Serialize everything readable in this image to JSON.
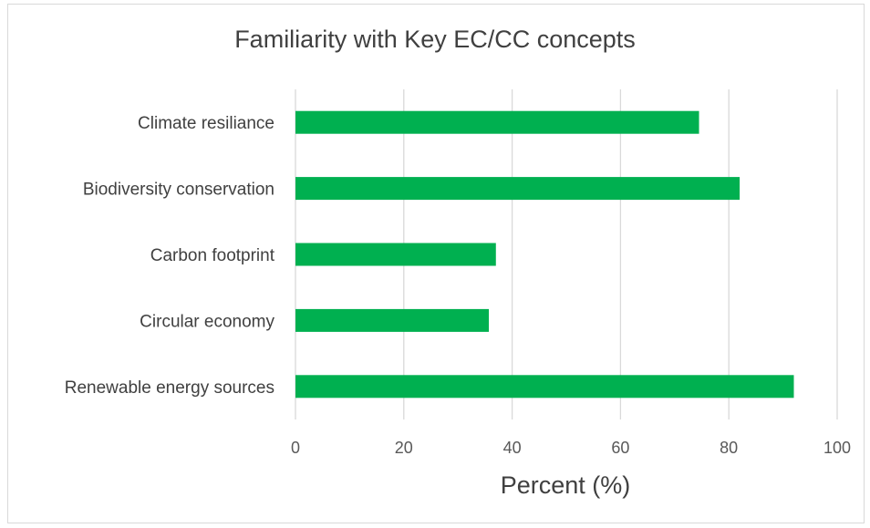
{
  "chart_data": {
    "type": "bar",
    "orientation": "horizontal",
    "title": "Familiarity with Key EC/CC concepts",
    "xlabel": "Percent (%)",
    "ylabel": "",
    "categories": [
      "Climate resiliance",
      "Biodiversity conservation",
      "Carbon footprint",
      "Circular economy",
      "Renewable energy sources"
    ],
    "values": [
      74.5,
      82,
      37,
      35.7,
      92
    ],
    "xlim": [
      0,
      100
    ],
    "xticks": [
      "0",
      "20",
      "40",
      "60",
      "80",
      "100"
    ],
    "grid": true,
    "legend": "none",
    "bar_color": "#00b050",
    "grid_color": "#d9d9d9"
  }
}
